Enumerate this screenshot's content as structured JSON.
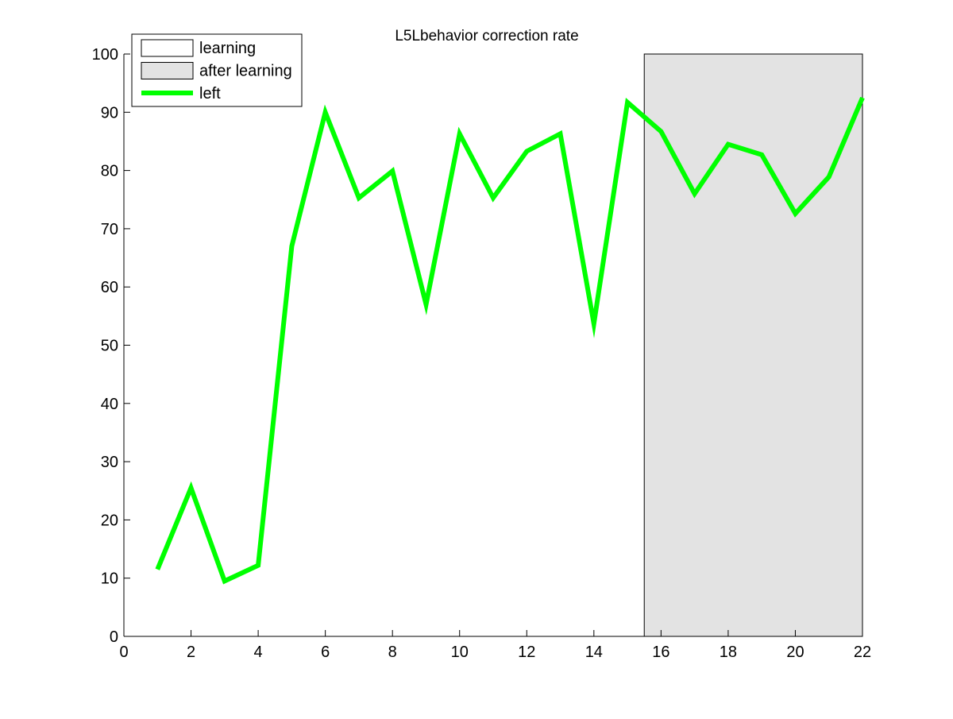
{
  "chart_data": {
    "type": "line",
    "title": "L5Lbehavior correction rate",
    "xlabel": "",
    "ylabel": "",
    "xlim": [
      0,
      22
    ],
    "ylim": [
      0,
      100
    ],
    "x_ticks": [
      0,
      2,
      4,
      6,
      8,
      10,
      12,
      14,
      16,
      18,
      20,
      22
    ],
    "y_ticks": [
      0,
      10,
      20,
      30,
      40,
      50,
      60,
      70,
      80,
      90,
      100
    ],
    "grid": false,
    "legend_position": "top-left",
    "legend": [
      {
        "label": "learning",
        "kind": "patch",
        "color": "#ffffff"
      },
      {
        "label": "after learning",
        "kind": "patch",
        "color": "#e3e3e3"
      },
      {
        "label": "left",
        "kind": "line",
        "color": "#00ff00"
      }
    ],
    "regions": [
      {
        "name": "after learning",
        "x_start": 15.5,
        "x_end": 22,
        "color": "#e3e3e3"
      }
    ],
    "series": [
      {
        "name": "left",
        "color": "#00ff00",
        "x": [
          1,
          2,
          3,
          4,
          5,
          6,
          7,
          8,
          9,
          10,
          11,
          12,
          13,
          14,
          15,
          16,
          17,
          18,
          19,
          20,
          21,
          22
        ],
        "values": [
          11.5,
          25.5,
          9.5,
          12.2,
          67,
          90,
          75.3,
          79.9,
          57,
          86.3,
          75.3,
          83.3,
          86.3,
          53.7,
          91.7,
          86.7,
          76,
          84.5,
          82.7,
          72.6,
          78.9,
          92.5
        ]
      }
    ]
  }
}
